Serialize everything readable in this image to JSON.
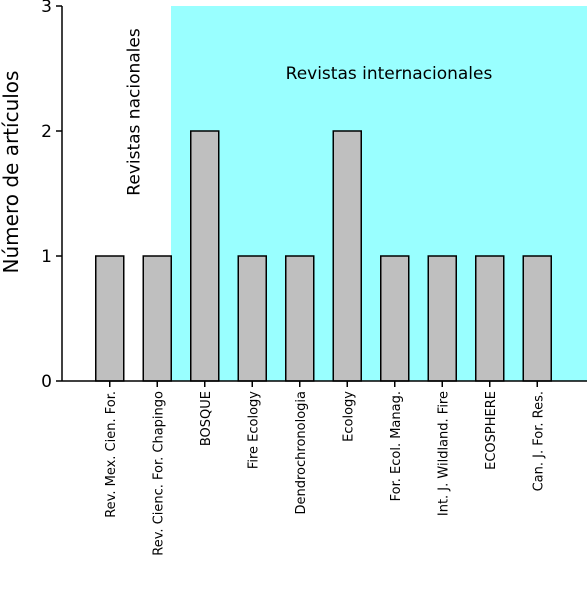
{
  "chart_data": {
    "type": "bar",
    "title": "",
    "xlabel": "",
    "ylabel": "Número de artículos",
    "ylim": [
      0,
      3
    ],
    "yticks": [
      0,
      1,
      2,
      3
    ],
    "grid": false,
    "categories": [
      "Rev. Mex. Cien. For.",
      "Rev. Cienc. For. Chapingo",
      "BOSQUE",
      "Fire Ecology",
      "Dendrochronologia",
      "Ecology",
      "For. Ecol. Manag.",
      "Int. J. Wildland. Fire",
      "ECOSPHERE",
      "Can. J. For. Res."
    ],
    "values": [
      1,
      1,
      2,
      1,
      1,
      2,
      1,
      1,
      1,
      1
    ],
    "regions": [
      {
        "label": "Revistas nacionales",
        "from_category": 0,
        "to_category": 1,
        "background": "#ffffff"
      },
      {
        "label": "Revistas internacionales",
        "from_category": 2,
        "to_category": 9,
        "background": "#99ffff"
      }
    ],
    "colors": {
      "bar_fill": "#bfbfbf",
      "bar_stroke": "#000000",
      "international_bg": "#99ffff"
    }
  }
}
